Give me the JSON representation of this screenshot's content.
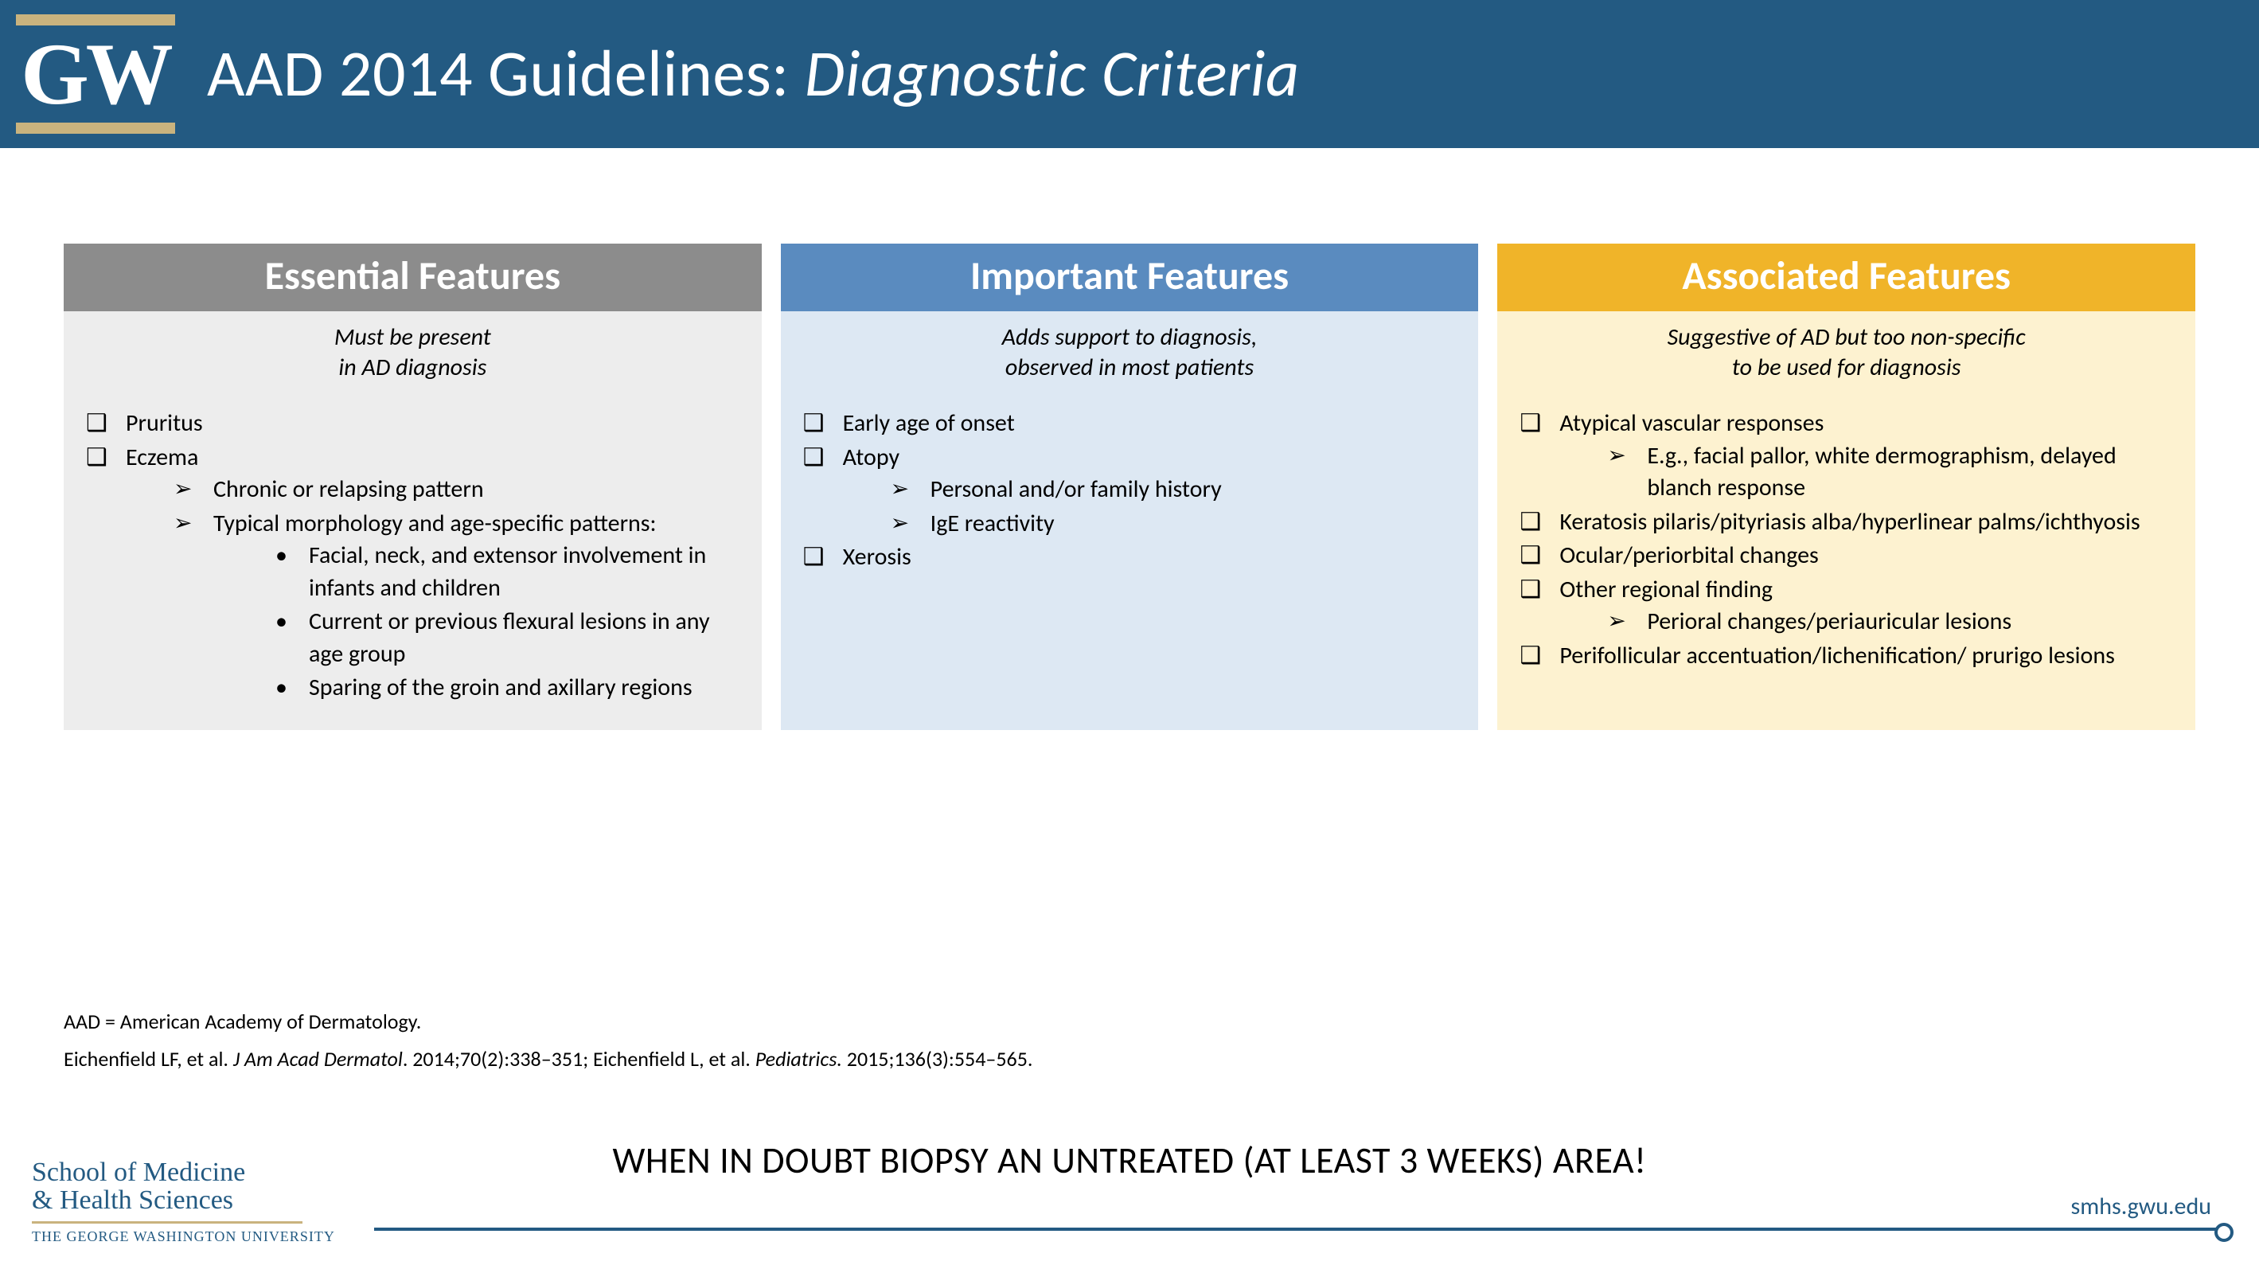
{
  "header": {
    "logo_text": "GW",
    "title_plain": "AAD 2014 Guidelines: ",
    "title_italic": "Diagnostic Criteria"
  },
  "columns": {
    "essential": {
      "header": "Essential Features",
      "sub_l1": "Must be present",
      "sub_l2": "in AD diagnosis",
      "items": {
        "pruritus": "Pruritus",
        "eczema": "Eczema",
        "eczema_sub": {
          "chronic": "Chronic or relapsing pattern",
          "typical": "Typical morphology and age-specific patterns:",
          "typical_sub": {
            "facial": "Facial, neck, and extensor involvement in infants and children",
            "flexural": "Current or previous flexural lesions in any age group",
            "sparing": "Sparing of the groin and axillary regions"
          }
        }
      }
    },
    "important": {
      "header": "Important Features",
      "sub_l1": "Adds support to diagnosis,",
      "sub_l2": "observed in most patients",
      "items": {
        "early": "Early age of onset",
        "atopy": "Atopy",
        "atopy_sub": {
          "history": "Personal and/or family history",
          "ige": "IgE reactivity"
        },
        "xerosis": "Xerosis"
      }
    },
    "associated": {
      "header": "Associated Features",
      "sub_l1": "Suggestive of AD but too non-specific",
      "sub_l2": "to be used for diagnosis",
      "items": {
        "vascular": "Atypical vascular responses",
        "vascular_sub": {
          "eg": "E.g., facial pallor, white dermographism, delayed blanch response"
        },
        "keratosis": "Keratosis pilaris/pityriasis alba/hyperlinear palms/ichthyosis",
        "ocular": "Ocular/periorbital changes",
        "regional": "Other regional finding",
        "regional_sub": {
          "perioral": "Perioral changes/periauricular lesions"
        },
        "perifollicular": "Perifollicular accentuation/lichenification/ prurigo lesions"
      }
    }
  },
  "notes": {
    "abbrev": "AAD = American Academy of Dermatology.",
    "ref_a": "Eichenfield LF, et al. ",
    "ref_a_ital": "J Am Acad Dermatol",
    "ref_a_tail": ". 2014;70(2):338–351; Eichenfield L, et al. ",
    "ref_b_ital": "Pediatrics.",
    "ref_b_tail": " 2015;136(3):554–565."
  },
  "biopsy": "WHEN IN DOUBT BIOPSY AN UNTREATED (AT LEAST 3 WEEKS) AREA!",
  "affil": {
    "l1": "School of Medicine",
    "l2": "& Health Sciences",
    "l3": "THE GEORGE WASHINGTON UNIVERSITY"
  },
  "url": "smhs.gwu.edu"
}
